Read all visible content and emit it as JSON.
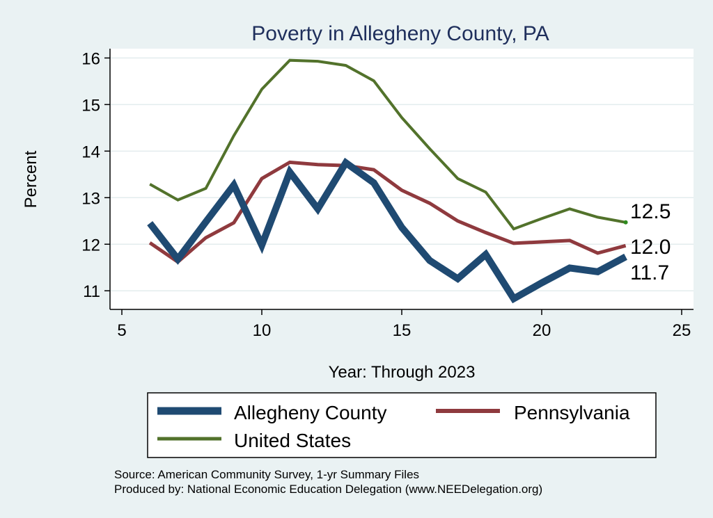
{
  "chart_data": {
    "type": "line",
    "title": "Poverty in Allegheny County, PA",
    "xlabel": "Year: Through 2023",
    "ylabel": "Percent",
    "xlim": [
      5,
      25
    ],
    "ylim": [
      10.6,
      16.2
    ],
    "x_ticks": [
      "5",
      "10",
      "15",
      "20",
      "25"
    ],
    "y_ticks": [
      "11",
      "12",
      "13",
      "14",
      "15",
      "16"
    ],
    "grid": true,
    "legend_position": "bottom",
    "series": [
      {
        "name": "Allegheny County",
        "color": "#1f4a72",
        "x": [
          6,
          7,
          8,
          9,
          10,
          11,
          12,
          13,
          14,
          15,
          16,
          17,
          18,
          19,
          20,
          21,
          22,
          23
        ],
        "y": [
          12.45,
          11.68,
          12.48,
          13.27,
          11.98,
          13.55,
          12.76,
          13.75,
          13.32,
          12.36,
          11.65,
          11.26,
          11.78,
          10.83,
          11.17,
          11.49,
          11.41,
          11.73
        ]
      },
      {
        "name": "Pennsylvania",
        "color": "#8f3a3e",
        "x": [
          6,
          7,
          8,
          9,
          10,
          11,
          12,
          13,
          14,
          15,
          16,
          17,
          18,
          19,
          20,
          21,
          22,
          23
        ],
        "y": [
          12.03,
          11.62,
          12.14,
          12.46,
          13.41,
          13.76,
          13.71,
          13.69,
          13.6,
          13.16,
          12.88,
          12.5,
          12.25,
          12.02,
          12.05,
          12.08,
          11.81,
          11.97
        ]
      },
      {
        "name": "United States",
        "color": "#52722b",
        "x": [
          6,
          7,
          8,
          9,
          10,
          11,
          12,
          13,
          14,
          15,
          16,
          17,
          18,
          19,
          20,
          21,
          22,
          23
        ],
        "y": [
          13.29,
          12.95,
          13.2,
          14.33,
          15.33,
          15.95,
          15.93,
          15.84,
          15.51,
          14.72,
          14.05,
          13.41,
          13.12,
          12.33,
          12.55,
          12.76,
          12.58,
          12.47
        ]
      }
    ],
    "end_labels": [
      "12.5",
      "12.0",
      "11.7"
    ]
  },
  "legend": {
    "items": [
      "Allegheny County",
      "Pennsylvania",
      "United States"
    ]
  },
  "notes": {
    "source": "Source: American Community Survey, 1-yr Summary Files",
    "produced": "Produced by: National Economic Education Delegation (www.NEEDelegation.org)"
  }
}
